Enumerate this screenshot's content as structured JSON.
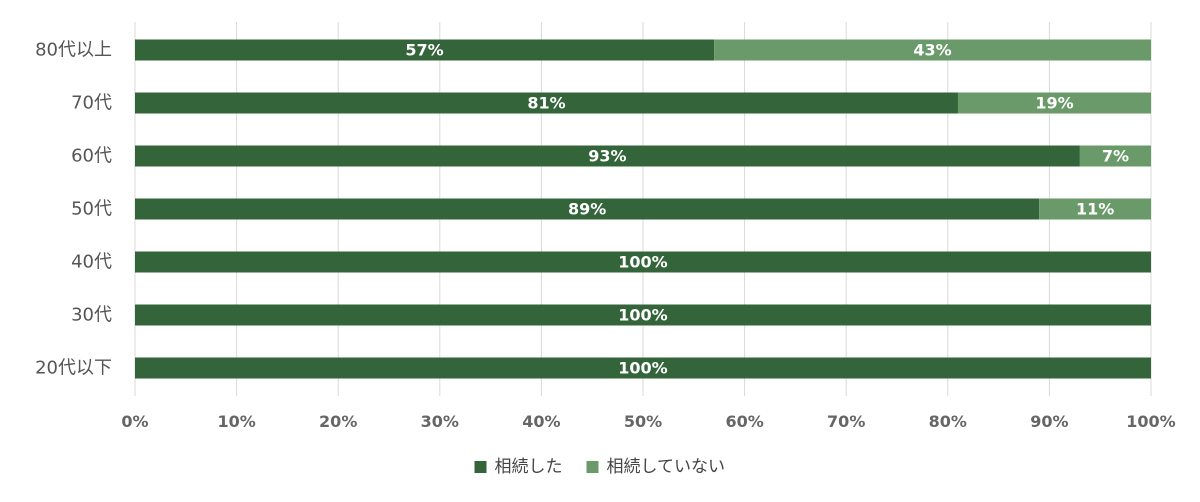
{
  "chart_data": {
    "type": "bar",
    "orientation": "horizontal",
    "stacked": true,
    "categories": [
      "80代以上",
      "70代",
      "60代",
      "50代",
      "40代",
      "30代",
      "20代以下"
    ],
    "series": [
      {
        "name": "相続した",
        "values": [
          57,
          81,
          93,
          89,
          100,
          100,
          100
        ],
        "color": "#34643a"
      },
      {
        "name": "相続していない",
        "values": [
          43,
          19,
          7,
          11,
          0,
          0,
          0
        ],
        "color": "#6a9a6a"
      }
    ],
    "value_format": "{v}%",
    "xlim": [
      0,
      100
    ],
    "x_ticks": [
      "0%",
      "10%",
      "20%",
      "30%",
      "40%",
      "50%",
      "60%",
      "70%",
      "80%",
      "90%",
      "100%"
    ],
    "grid": true,
    "legend_position": "bottom"
  }
}
